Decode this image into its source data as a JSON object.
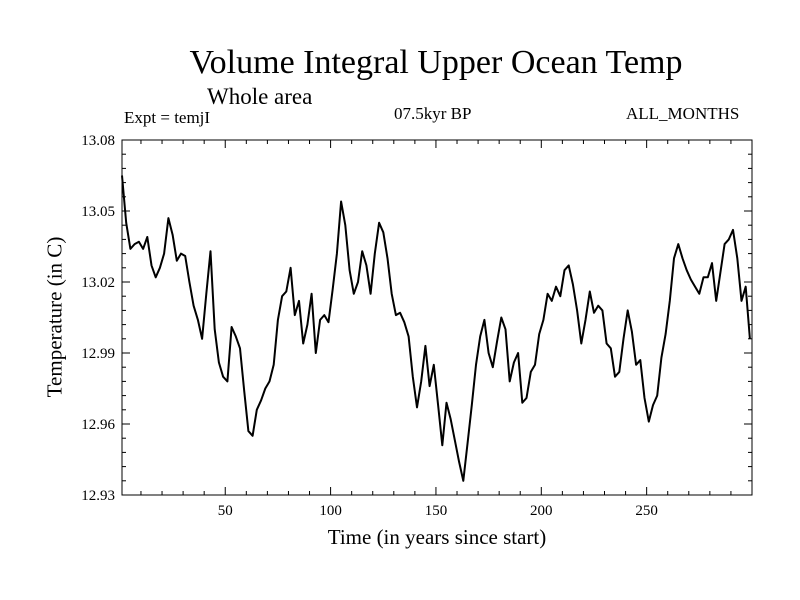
{
  "chart_data": {
    "type": "line",
    "title": "Volume Integral Upper Ocean Temp",
    "subtitle": "Whole area",
    "annotations": {
      "left": "Expt = temjI",
      "center": "07.5kyr BP",
      "right": "ALL_MONTHS"
    },
    "xlabel": "Time (in years since start)",
    "ylabel": "Temperature (in C)",
    "xlim": [
      1,
      300
    ],
    "ylim": [
      12.93,
      13.08
    ],
    "xticks": [
      50,
      100,
      150,
      200,
      250
    ],
    "yticks": [
      12.93,
      12.96,
      12.99,
      13.02,
      13.05,
      13.08
    ],
    "ytick_labels": [
      "12.93",
      "12.96",
      "12.99",
      "13.02",
      "13.05",
      "13.08"
    ],
    "series": [
      {
        "name": "temperature",
        "x": [
          1,
          3,
          5,
          7,
          9,
          11,
          13,
          15,
          17,
          19,
          21,
          23,
          25,
          27,
          29,
          31,
          33,
          35,
          37,
          39,
          41,
          43,
          45,
          47,
          49,
          51,
          53,
          55,
          57,
          59,
          61,
          63,
          65,
          67,
          69,
          71,
          73,
          75,
          77,
          79,
          81,
          83,
          85,
          87,
          89,
          91,
          93,
          95,
          97,
          99,
          101,
          103,
          105,
          107,
          109,
          111,
          113,
          115,
          117,
          119,
          121,
          123,
          125,
          127,
          129,
          131,
          133,
          135,
          137,
          139,
          141,
          143,
          145,
          147,
          149,
          151,
          153,
          155,
          157,
          159,
          161,
          163,
          165,
          167,
          169,
          171,
          173,
          175,
          177,
          179,
          181,
          183,
          185,
          187,
          189,
          191,
          193,
          195,
          197,
          199,
          201,
          203,
          205,
          207,
          209,
          211,
          213,
          215,
          217,
          219,
          221,
          223,
          225,
          227,
          229,
          231,
          233,
          235,
          237,
          239,
          241,
          243,
          245,
          247,
          249,
          251,
          253,
          255,
          257,
          259,
          261,
          263,
          265,
          267,
          269,
          271,
          273,
          275,
          277,
          279,
          281,
          283,
          285,
          287,
          289,
          291,
          293,
          295,
          297,
          299
        ],
        "values": [
          13.065,
          13.045,
          13.034,
          13.036,
          13.037,
          13.034,
          13.039,
          13.027,
          13.022,
          13.026,
          13.032,
          13.047,
          13.04,
          13.029,
          13.032,
          13.031,
          13.02,
          13.01,
          13.004,
          12.996,
          13.015,
          13.033,
          13.0,
          12.986,
          12.98,
          12.978,
          13.001,
          12.997,
          12.992,
          12.974,
          12.957,
          12.955,
          12.966,
          12.97,
          12.975,
          12.978,
          12.985,
          13.004,
          13.014,
          13.016,
          13.026,
          13.006,
          13.012,
          12.994,
          13.002,
          13.015,
          12.99,
          13.004,
          13.006,
          13.003,
          13.017,
          13.032,
          13.054,
          13.044,
          13.025,
          13.015,
          13.02,
          13.033,
          13.027,
          13.015,
          13.032,
          13.045,
          13.041,
          13.03,
          13.015,
          13.006,
          13.007,
          13.003,
          12.997,
          12.98,
          12.967,
          12.978,
          12.993,
          12.976,
          12.985,
          12.968,
          12.951,
          12.969,
          12.962,
          12.953,
          12.944,
          12.936,
          12.952,
          12.968,
          12.985,
          12.997,
          13.004,
          12.99,
          12.984,
          12.995,
          13.005,
          13.0,
          12.978,
          12.986,
          12.99,
          12.969,
          12.971,
          12.982,
          12.985,
          12.998,
          13.004,
          13.015,
          13.012,
          13.018,
          13.014,
          13.025,
          13.027,
          13.019,
          13.008,
          12.994,
          13.004,
          13.016,
          13.007,
          13.01,
          13.008,
          12.994,
          12.992,
          12.98,
          12.982,
          12.996,
          13.008,
          12.999,
          12.985,
          12.987,
          12.971,
          12.961,
          12.968,
          12.972,
          12.988,
          12.998,
          13.012,
          13.03,
          13.036,
          13.03,
          13.025,
          13.021,
          13.018,
          13.015,
          13.022,
          13.022,
          13.028,
          13.012,
          13.024,
          13.036,
          13.038,
          13.042,
          13.03,
          13.012,
          13.018,
          12.996
        ]
      }
    ]
  }
}
